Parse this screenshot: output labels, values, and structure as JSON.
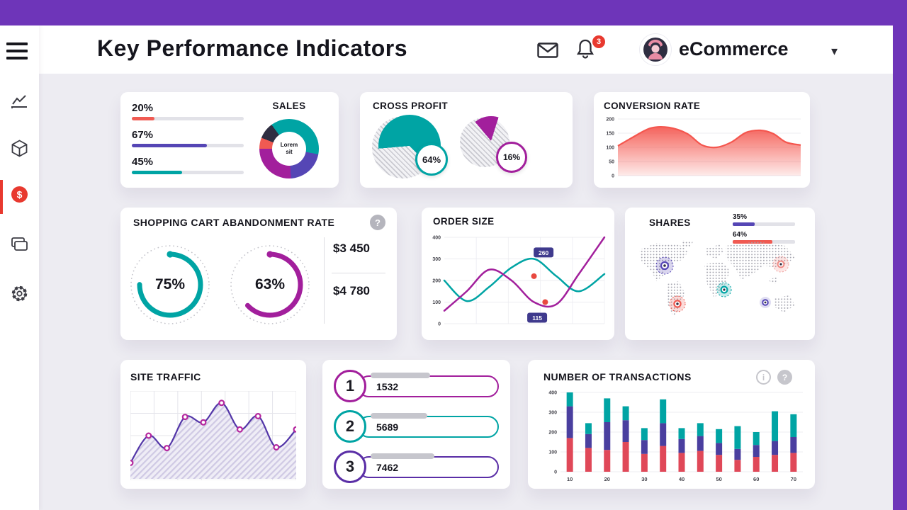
{
  "colors": {
    "accent_purple": "#6e35b9",
    "teal": "#00a4a4",
    "magenta": "#a21f9c",
    "indigo": "#5546b5",
    "red": "#f05a52",
    "crimson": "#e04858",
    "badge_indigo": "#3f3a8d",
    "navy": "#2f2e41",
    "page_bg": "#edecf2",
    "track_gray": "#e2e2e8"
  },
  "header": {
    "title": "Key Performance Indicators",
    "notification_count": "3",
    "account_name": "eCommerce"
  },
  "icons": {
    "question_mark": "?",
    "info": "i",
    "help": "?",
    "dollar": "$",
    "caret": "▾"
  },
  "sidebar": {
    "items": [
      "menu",
      "analytics",
      "products",
      "revenue",
      "cards",
      "settings"
    ]
  },
  "cards": {
    "sales": {
      "title": "SALES",
      "bars": [
        {
          "label": "20%",
          "value": 20,
          "color": "#f05a52"
        },
        {
          "label": "67%",
          "value": 67,
          "color": "#5546b5"
        },
        {
          "label": "45%",
          "value": 45,
          "color": "#00a4a4"
        }
      ],
      "donut": {
        "center_label": "Lorem sit",
        "segments": [
          {
            "color": "#f05a52",
            "value": 6
          },
          {
            "color": "#2f2e41",
            "value": 9
          },
          {
            "color": "#00a4a4",
            "value": 38
          },
          {
            "color": "#5546b5",
            "value": 21
          },
          {
            "color": "#a21f9c",
            "value": 26
          }
        ]
      }
    },
    "cross_profit": {
      "title": "CROSS PROFIT",
      "pies": [
        {
          "label": "64%",
          "percent": 64,
          "color": "#00a4a4",
          "start": -95
        },
        {
          "label": "16%",
          "percent": 16,
          "color": "#a21f9c",
          "start": -40
        }
      ]
    },
    "conversion_rate": {
      "title": "CONVERSION RATE",
      "chart": {
        "type": "area",
        "color": "#f4564e",
        "ymax": 200,
        "yticks": [
          200,
          150,
          100,
          50,
          0
        ],
        "x": [
          0,
          8,
          18,
          28,
          38,
          46,
          54,
          62,
          70,
          78,
          85,
          92,
          100
        ],
        "values": [
          105,
          135,
          168,
          170,
          148,
          108,
          100,
          118,
          152,
          160,
          148,
          118,
          108
        ]
      }
    },
    "abandonment": {
      "title": "SHOPPING CART ABANDONMENT RATE",
      "rings": [
        {
          "label": "75%",
          "percent": 75,
          "color": "#00a4a4"
        },
        {
          "label": "63%",
          "percent": 63,
          "color": "#a21f9c"
        }
      ],
      "amounts": [
        "$3 450",
        "$4 780"
      ]
    },
    "order_size": {
      "title": "ORDER SIZE",
      "chart": {
        "type": "line",
        "ymax": 400,
        "yticks": [
          400,
          300,
          200,
          100,
          0
        ],
        "x": [
          0,
          14,
          28,
          42,
          56,
          70,
          84,
          100
        ],
        "series": [
          {
            "name": "teal",
            "color": "#00a4a4",
            "values": [
              200,
              105,
              170,
              260,
              300,
              220,
              150,
              230
            ]
          },
          {
            "name": "magenta",
            "color": "#a21f9c",
            "values": [
              60,
              150,
              250,
              200,
              100,
              90,
              230,
              400
            ]
          }
        ],
        "markers": [
          {
            "x": 56,
            "value": 220
          },
          {
            "x": 63,
            "value": 100
          }
        ],
        "badges": [
          {
            "text": "260",
            "x": 62,
            "value": 330
          },
          {
            "text": "115",
            "x": 58,
            "value": 28
          }
        ]
      }
    },
    "shares": {
      "title": "SHARES",
      "legend": [
        {
          "label": "35%",
          "percent": 35,
          "color": "#5546b5"
        },
        {
          "label": "64%",
          "percent": 64,
          "color": "#f05a52"
        }
      ]
    },
    "site_traffic": {
      "title": "SITE TRAFFIC",
      "chart": {
        "type": "line-area",
        "line_color": "#5336a8",
        "marker_color": "#b5269e",
        "x": [
          0,
          11,
          22,
          33,
          44,
          55,
          66,
          77,
          88,
          100
        ],
        "values": [
          15,
          50,
          34,
          74,
          67,
          92,
          58,
          75,
          35,
          58
        ]
      }
    },
    "ranking": {
      "items": [
        {
          "rank": "1",
          "value": "1532",
          "color": "#a21f9c",
          "track_pct": 42
        },
        {
          "rank": "2",
          "value": "5689",
          "color": "#00a4a4",
          "track_pct": 40
        },
        {
          "rank": "3",
          "value": "7462",
          "color": "#5a2ea6",
          "track_pct": 45
        }
      ]
    },
    "transactions": {
      "title": "NUMBER OF TRANSACTIONS",
      "chart": {
        "type": "stacked-bar",
        "ymax": 400,
        "yticks": [
          400,
          300,
          200,
          100,
          0
        ],
        "xticks": [
          "10",
          "20",
          "30",
          "40",
          "50",
          "60",
          "70"
        ],
        "colors": [
          "#e04858",
          "#4a3f9f",
          "#00a4a4"
        ],
        "stacks": [
          [
            170,
            160,
            70
          ],
          [
            120,
            70,
            55
          ],
          [
            110,
            140,
            120
          ],
          [
            150,
            110,
            70
          ],
          [
            90,
            70,
            60
          ],
          [
            130,
            115,
            120
          ],
          [
            95,
            70,
            55
          ],
          [
            105,
            75,
            65
          ],
          [
            85,
            60,
            70
          ],
          [
            60,
            55,
            115
          ],
          [
            75,
            60,
            65
          ],
          [
            85,
            70,
            150
          ],
          [
            95,
            80,
            115
          ]
        ]
      }
    }
  }
}
